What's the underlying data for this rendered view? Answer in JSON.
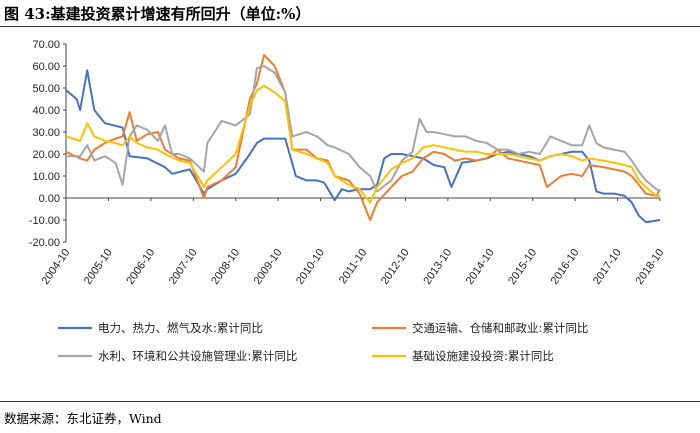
{
  "figure": {
    "title": "图 43:基建投资累计增速有所回升（单位:%）",
    "source": "数据来源：东北证券，Wind"
  },
  "chart_data": {
    "type": "line",
    "ylim": [
      -20,
      70
    ],
    "y_ticks": [
      "70.00",
      "60.00",
      "50.00",
      "40.00",
      "30.00",
      "20.00",
      "10.00",
      "0.00",
      "-10.00",
      "-20.00"
    ],
    "x_range": [
      "2004-10",
      "2018-10"
    ],
    "x_ticks": [
      "2004-10",
      "2005-10",
      "2006-10",
      "2007-10",
      "2008-10",
      "2009-10",
      "2010-10",
      "2011-10",
      "2012-10",
      "2013-10",
      "2014-10",
      "2015-10",
      "2016-10",
      "2017-10",
      "2018-10"
    ],
    "grid": false,
    "legend_position": "bottom",
    "series": [
      {
        "name": "电力、热力、燃气及水:累计同比",
        "color": "#4472c4",
        "points": [
          [
            "2004-10",
            49
          ],
          [
            "2005-01",
            45
          ],
          [
            "2005-02",
            40
          ],
          [
            "2005-04",
            58
          ],
          [
            "2005-06",
            40
          ],
          [
            "2005-09",
            34
          ],
          [
            "2006-02",
            32
          ],
          [
            "2006-04",
            19
          ],
          [
            "2006-09",
            18
          ],
          [
            "2007-02",
            14
          ],
          [
            "2007-04",
            11
          ],
          [
            "2007-09",
            13
          ],
          [
            "2008-01",
            2
          ],
          [
            "2008-02",
            4
          ],
          [
            "2008-06",
            8
          ],
          [
            "2008-10",
            11
          ],
          [
            "2009-02",
            20
          ],
          [
            "2009-04",
            25
          ],
          [
            "2009-06",
            27
          ],
          [
            "2009-09",
            27
          ],
          [
            "2009-12",
            27
          ],
          [
            "2010-03",
            10
          ],
          [
            "2010-06",
            8
          ],
          [
            "2010-09",
            8
          ],
          [
            "2010-11",
            7
          ],
          [
            "2011-02",
            -1
          ],
          [
            "2011-04",
            4
          ],
          [
            "2011-06",
            3
          ],
          [
            "2011-09",
            4
          ],
          [
            "2011-12",
            4
          ],
          [
            "2012-02",
            6
          ],
          [
            "2012-04",
            18
          ],
          [
            "2012-06",
            20
          ],
          [
            "2012-09",
            20
          ],
          [
            "2012-12",
            19
          ],
          [
            "2013-03",
            18
          ],
          [
            "2013-06",
            15
          ],
          [
            "2013-09",
            14
          ],
          [
            "2013-11",
            5
          ],
          [
            "2014-02",
            16
          ],
          [
            "2014-06",
            17
          ],
          [
            "2014-09",
            18
          ],
          [
            "2014-12",
            20
          ],
          [
            "2015-03",
            21
          ],
          [
            "2015-06",
            20
          ],
          [
            "2015-09",
            19
          ],
          [
            "2015-12",
            17
          ],
          [
            "2016-03",
            19
          ],
          [
            "2016-06",
            20
          ],
          [
            "2016-09",
            21
          ],
          [
            "2016-12",
            21
          ],
          [
            "2017-02",
            17
          ],
          [
            "2017-04",
            3
          ],
          [
            "2017-06",
            2
          ],
          [
            "2017-09",
            2
          ],
          [
            "2017-12",
            1
          ],
          [
            "2018-02",
            -2
          ],
          [
            "2018-04",
            -8
          ],
          [
            "2018-06",
            -11
          ],
          [
            "2018-10",
            -10
          ]
        ]
      },
      {
        "name": "交通运输、仓储和邮政业:累计同比",
        "color": "#ed7d31",
        "points": [
          [
            "2004-10",
            21
          ],
          [
            "2005-02",
            18
          ],
          [
            "2005-04",
            17
          ],
          [
            "2005-06",
            22
          ],
          [
            "2005-09",
            25
          ],
          [
            "2005-12",
            27
          ],
          [
            "2006-02",
            28
          ],
          [
            "2006-04",
            39
          ],
          [
            "2006-06",
            26
          ],
          [
            "2006-09",
            29
          ],
          [
            "2006-12",
            30
          ],
          [
            "2007-02",
            22
          ],
          [
            "2007-06",
            18
          ],
          [
            "2007-09",
            17
          ],
          [
            "2008-01",
            0
          ],
          [
            "2008-02",
            5
          ],
          [
            "2008-06",
            8
          ],
          [
            "2008-10",
            14
          ],
          [
            "2009-02",
            45
          ],
          [
            "2009-04",
            52
          ],
          [
            "2009-06",
            65
          ],
          [
            "2009-09",
            60
          ],
          [
            "2009-12",
            48
          ],
          [
            "2010-02",
            22
          ],
          [
            "2010-06",
            22
          ],
          [
            "2010-09",
            18
          ],
          [
            "2010-12",
            17
          ],
          [
            "2011-02",
            10
          ],
          [
            "2011-06",
            8
          ],
          [
            "2011-09",
            2
          ],
          [
            "2011-12",
            -10
          ],
          [
            "2012-02",
            -2
          ],
          [
            "2012-06",
            5
          ],
          [
            "2012-09",
            10
          ],
          [
            "2012-12",
            12
          ],
          [
            "2013-03",
            18
          ],
          [
            "2013-06",
            21
          ],
          [
            "2013-09",
            20
          ],
          [
            "2013-12",
            17
          ],
          [
            "2014-03",
            18
          ],
          [
            "2014-06",
            17
          ],
          [
            "2014-09",
            18
          ],
          [
            "2014-12",
            22
          ],
          [
            "2015-03",
            18
          ],
          [
            "2015-06",
            17
          ],
          [
            "2015-09",
            16
          ],
          [
            "2015-12",
            15
          ],
          [
            "2016-02",
            5
          ],
          [
            "2016-06",
            10
          ],
          [
            "2016-09",
            11
          ],
          [
            "2016-12",
            10
          ],
          [
            "2017-02",
            15
          ],
          [
            "2017-06",
            14
          ],
          [
            "2017-09",
            13
          ],
          [
            "2017-12",
            12
          ],
          [
            "2018-02",
            10
          ],
          [
            "2018-04",
            6
          ],
          [
            "2018-06",
            2
          ],
          [
            "2018-09",
            1
          ],
          [
            "2018-10",
            4
          ]
        ]
      },
      {
        "name": "水利、环境和公共设施管理业:累计同比",
        "color": "#a5a5a5",
        "points": [
          [
            "2004-10",
            19
          ],
          [
            "2005-02",
            19
          ],
          [
            "2005-04",
            24
          ],
          [
            "2005-06",
            17
          ],
          [
            "2005-09",
            19
          ],
          [
            "2005-12",
            16
          ],
          [
            "2006-02",
            6
          ],
          [
            "2006-04",
            28
          ],
          [
            "2006-06",
            33
          ],
          [
            "2006-09",
            31
          ],
          [
            "2006-12",
            26
          ],
          [
            "2007-02",
            33
          ],
          [
            "2007-04",
            20
          ],
          [
            "2007-06",
            20
          ],
          [
            "2007-09",
            18
          ],
          [
            "2008-01",
            12
          ],
          [
            "2008-02",
            25
          ],
          [
            "2008-06",
            35
          ],
          [
            "2008-10",
            33
          ],
          [
            "2009-02",
            38
          ],
          [
            "2009-04",
            59
          ],
          [
            "2009-06",
            60
          ],
          [
            "2009-09",
            57
          ],
          [
            "2009-12",
            48
          ],
          [
            "2010-02",
            28
          ],
          [
            "2010-06",
            30
          ],
          [
            "2010-09",
            28
          ],
          [
            "2010-12",
            24
          ],
          [
            "2011-02",
            23
          ],
          [
            "2011-06",
            20
          ],
          [
            "2011-09",
            14
          ],
          [
            "2011-12",
            10
          ],
          [
            "2012-02",
            3
          ],
          [
            "2012-06",
            8
          ],
          [
            "2012-09",
            17
          ],
          [
            "2012-12",
            21
          ],
          [
            "2013-02",
            36
          ],
          [
            "2013-04",
            30
          ],
          [
            "2013-06",
            30
          ],
          [
            "2013-09",
            29
          ],
          [
            "2013-12",
            28
          ],
          [
            "2014-03",
            28
          ],
          [
            "2014-06",
            26
          ],
          [
            "2014-09",
            25
          ],
          [
            "2014-12",
            22
          ],
          [
            "2015-03",
            22
          ],
          [
            "2015-06",
            20
          ],
          [
            "2015-09",
            21
          ],
          [
            "2015-12",
            20
          ],
          [
            "2016-03",
            28
          ],
          [
            "2016-06",
            26
          ],
          [
            "2016-09",
            24
          ],
          [
            "2016-12",
            24
          ],
          [
            "2017-02",
            33
          ],
          [
            "2017-04",
            25
          ],
          [
            "2017-06",
            23
          ],
          [
            "2017-09",
            22
          ],
          [
            "2017-12",
            21
          ],
          [
            "2018-02",
            17
          ],
          [
            "2018-04",
            12
          ],
          [
            "2018-06",
            8
          ],
          [
            "2018-09",
            4
          ],
          [
            "2018-10",
            3
          ]
        ]
      },
      {
        "name": "基础设施建设投资:累计同比",
        "color": "#ffc000",
        "points": [
          [
            "2004-10",
            28
          ],
          [
            "2005-02",
            26
          ],
          [
            "2005-04",
            34
          ],
          [
            "2005-06",
            28
          ],
          [
            "2005-09",
            26
          ],
          [
            "2005-12",
            25
          ],
          [
            "2006-02",
            24
          ],
          [
            "2006-04",
            28
          ],
          [
            "2006-06",
            25
          ],
          [
            "2006-09",
            23
          ],
          [
            "2006-12",
            22
          ],
          [
            "2007-02",
            20
          ],
          [
            "2007-06",
            17
          ],
          [
            "2007-09",
            16
          ],
          [
            "2008-01",
            5
          ],
          [
            "2008-02",
            8
          ],
          [
            "2008-06",
            14
          ],
          [
            "2008-10",
            20
          ],
          [
            "2009-02",
            42
          ],
          [
            "2009-04",
            49
          ],
          [
            "2009-06",
            51
          ],
          [
            "2009-09",
            48
          ],
          [
            "2009-12",
            44
          ],
          [
            "2010-02",
            22
          ],
          [
            "2010-06",
            20
          ],
          [
            "2010-09",
            18
          ],
          [
            "2010-12",
            16
          ],
          [
            "2011-02",
            10
          ],
          [
            "2011-06",
            6
          ],
          [
            "2011-09",
            4
          ],
          [
            "2011-12",
            -2
          ],
          [
            "2012-02",
            5
          ],
          [
            "2012-06",
            13
          ],
          [
            "2012-09",
            16
          ],
          [
            "2012-12",
            18
          ],
          [
            "2013-03",
            23
          ],
          [
            "2013-06",
            24
          ],
          [
            "2013-09",
            23
          ],
          [
            "2013-12",
            22
          ],
          [
            "2014-03",
            21
          ],
          [
            "2014-06",
            21
          ],
          [
            "2014-09",
            20
          ],
          [
            "2014-12",
            20
          ],
          [
            "2015-03",
            20
          ],
          [
            "2015-06",
            19
          ],
          [
            "2015-09",
            18
          ],
          [
            "2015-12",
            17
          ],
          [
            "2016-03",
            19
          ],
          [
            "2016-06",
            20
          ],
          [
            "2016-09",
            19
          ],
          [
            "2016-12",
            17
          ],
          [
            "2017-02",
            18
          ],
          [
            "2017-06",
            17
          ],
          [
            "2017-09",
            16
          ],
          [
            "2017-12",
            15
          ],
          [
            "2018-02",
            14
          ],
          [
            "2018-04",
            8
          ],
          [
            "2018-06",
            5
          ],
          [
            "2018-09",
            1
          ],
          [
            "2018-10",
            1
          ]
        ]
      }
    ]
  }
}
